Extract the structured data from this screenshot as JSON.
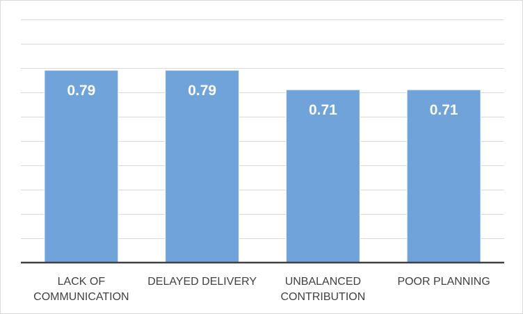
{
  "chart_data": {
    "type": "bar",
    "categories": [
      [
        "LACK OF",
        "COMMUNICATION"
      ],
      [
        "DELAYED DELIVERY"
      ],
      [
        "UNBALANCED",
        "CONTRIBUTION"
      ],
      [
        "POOR PLANNING"
      ]
    ],
    "values": [
      0.79,
      0.79,
      0.71,
      0.71
    ],
    "data_labels": [
      "0.79",
      "0.79",
      "0.71",
      "0.71"
    ],
    "title": "",
    "xlabel": "",
    "ylabel": "",
    "ylim": [
      0,
      1.0
    ],
    "grid": true,
    "legend": "none",
    "colors": {
      "bar": "#6fa3d9",
      "grid": "#d9d9d9",
      "axis": "#404040",
      "label": "#404040",
      "data_label": "#ffffff"
    }
  }
}
